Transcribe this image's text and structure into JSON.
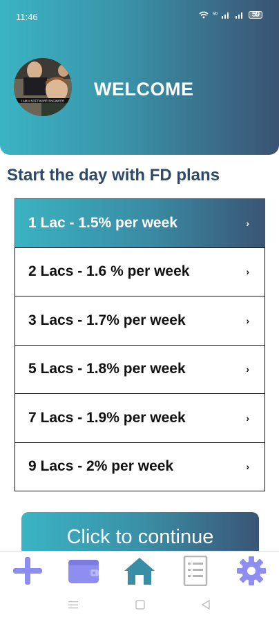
{
  "status_bar": {
    "time": "11:46",
    "icons": [
      "wifi-icon",
      "volte-icon",
      "signal-icon",
      "signal-icon",
      "battery-icon"
    ],
    "battery": "59"
  },
  "header": {
    "title": "WELCOME",
    "avatar_caption": "I AM A SOFTWARE ENGINEER"
  },
  "subtitle": "Start the day with FD plans",
  "plans": [
    {
      "label": "1 Lac - 1.5% per week",
      "selected": true
    },
    {
      "label": "2 Lacs - 1.6 % per week",
      "selected": false
    },
    {
      "label": "3 Lacs - 1.7% per week",
      "selected": false
    },
    {
      "label": "5 Lacs - 1.8% per week",
      "selected": false
    },
    {
      "label": "7 Lacs - 1.9% per week",
      "selected": false
    },
    {
      "label": "9 Lacs - 2% per week",
      "selected": false
    }
  ],
  "chevron": "›",
  "continue_button": "Click to continue",
  "bottom_nav": [
    "add-icon",
    "wallet-icon",
    "home-icon",
    "document-icon",
    "settings-icon"
  ],
  "colors": {
    "accent_start": "#3ab4c3",
    "accent_end": "#3a5373",
    "nav_icon": "#8e8ef0",
    "nav_active": "#3a8da6",
    "subtitle": "#2e4a66"
  }
}
